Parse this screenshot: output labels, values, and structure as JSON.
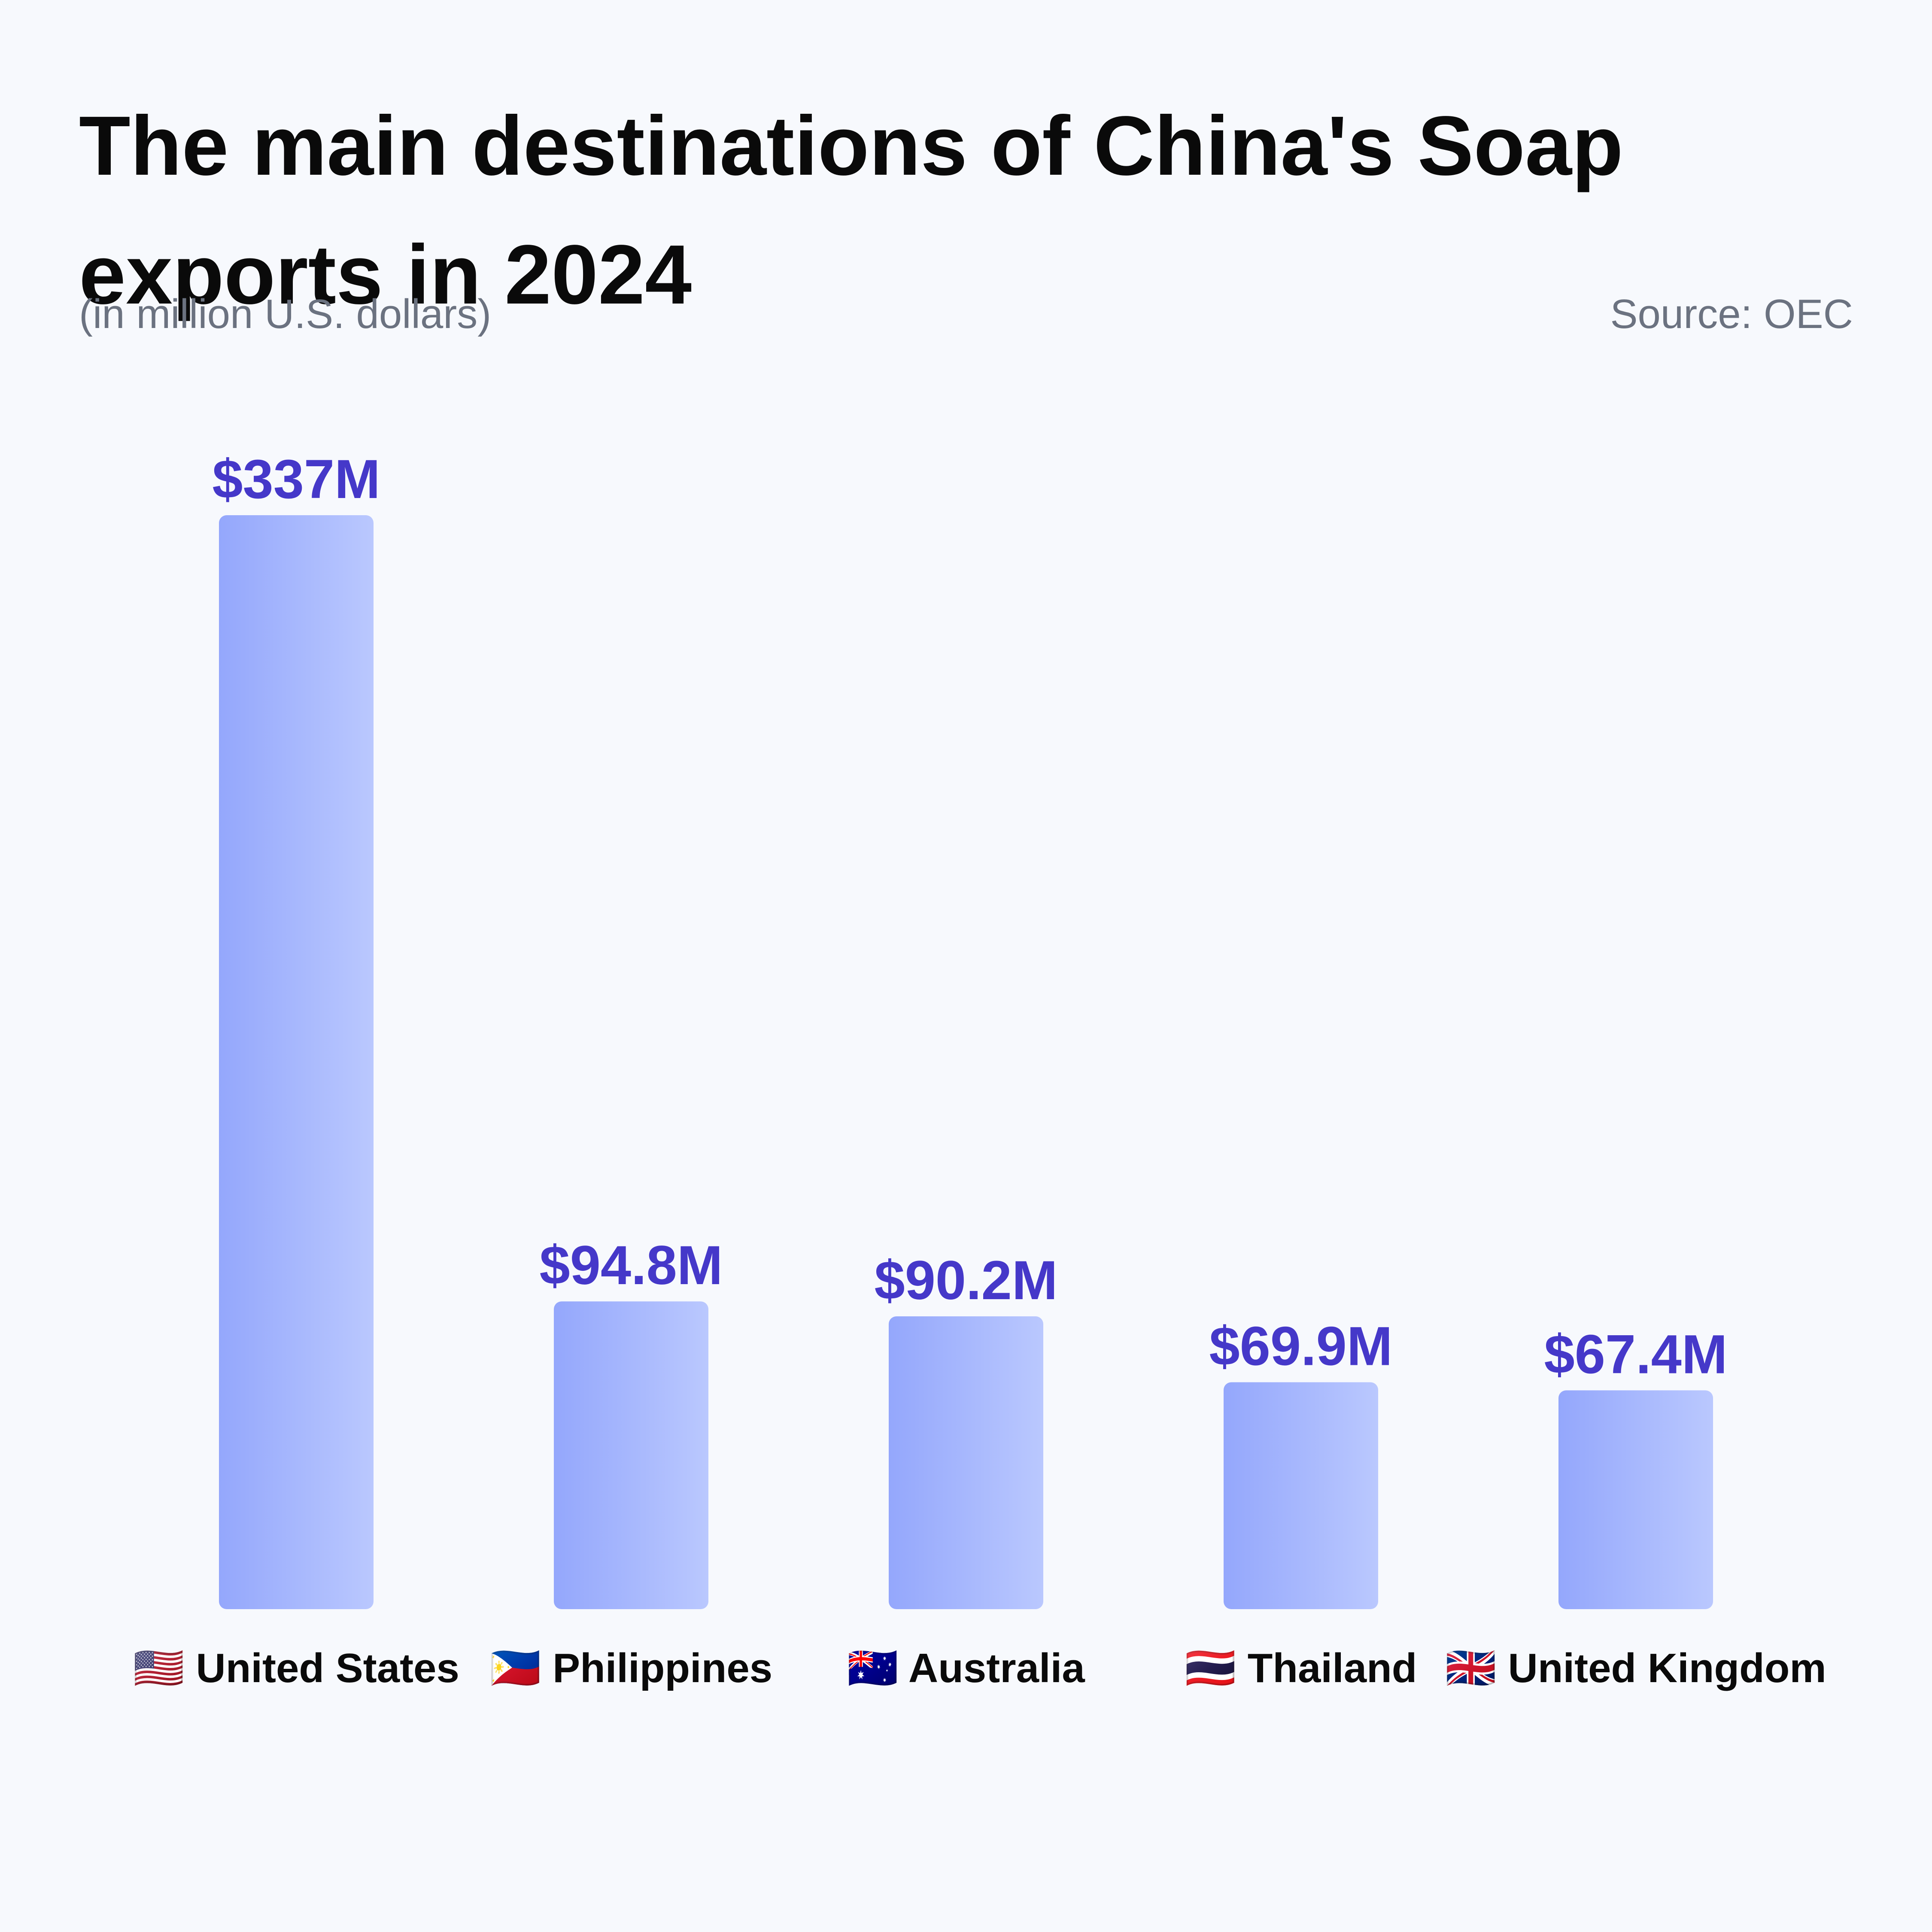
{
  "header": {
    "title": "The main destinations of China's Soap exports in 2024",
    "subtitle": "(in million U.S. dollars)",
    "source": "Source: OEC"
  },
  "colors": {
    "background": "#f7f9fd",
    "bar_gradient_start": "#94a7fc",
    "bar_gradient_end": "#bac8fe",
    "value_label": "#4538c9",
    "category_label": "#0a0a0a"
  },
  "chart_data": {
    "type": "bar",
    "categories": [
      "United States",
      "Philippines",
      "Australia",
      "Thailand",
      "United Kingdom"
    ],
    "flags": [
      "🇺🇸",
      "🇵🇭",
      "🇦🇺",
      "🇹🇭",
      "🇬🇧"
    ],
    "values": [
      337,
      94.8,
      90.2,
      69.9,
      67.4
    ],
    "value_labels": [
      "$337M",
      "$94.8M",
      "$90.2M",
      "$69.9M",
      "$67.4M"
    ],
    "ylim": [
      0,
      337
    ],
    "grid": false,
    "legend": "none"
  }
}
